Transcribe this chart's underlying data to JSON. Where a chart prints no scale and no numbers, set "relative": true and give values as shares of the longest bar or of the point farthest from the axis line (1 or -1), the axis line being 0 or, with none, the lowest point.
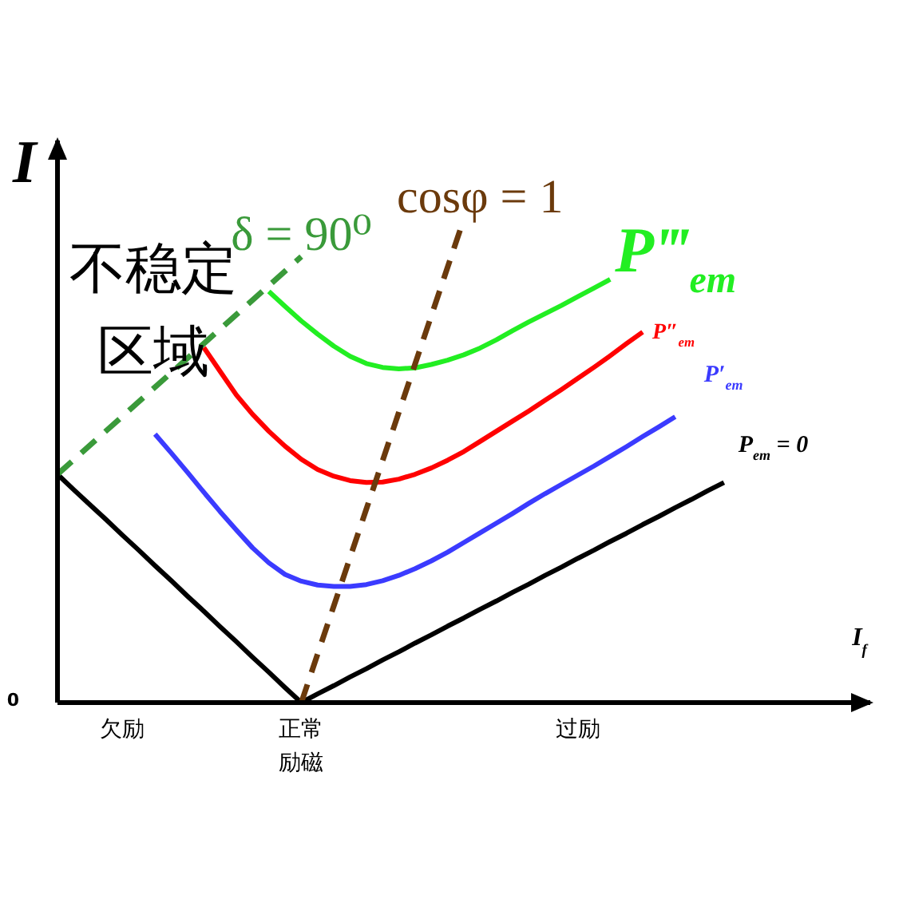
{
  "chart_data": {
    "type": "line",
    "relative": true,
    "xlabel": "I$_{f}$",
    "ylabel": "I",
    "categories": [
      null,
      null,
      null,
      null,
      "欠励",
      null,
      null,
      null,
      null,
      null,
      null,
      null,
      null,
      null,
      null,
      "正常励磁",
      null,
      null,
      null,
      null,
      null,
      null,
      null,
      null,
      null,
      null,
      null,
      null,
      null,
      null,
      null,
      null,
      "过励",
      null,
      null,
      null,
      null,
      null,
      null,
      null,
      null,
      null,
      null,
      null,
      null,
      null,
      null,
      null,
      null,
      null,
      null
    ],
    "series": [
      {
        "name": "P$_{em}$ = 0",
        "color": "#000000",
        "values": [
          0.472,
          0.44,
          0.409,
          0.378,
          0.346,
          0.315,
          0.283,
          0.252,
          0.22,
          0.189,
          0.157,
          0.126,
          0.094,
          0.063,
          0.031,
          0,
          0.018,
          0.035,
          0.053,
          0.07,
          0.088,
          0.105,
          0.123,
          0.14,
          0.158,
          0.175,
          0.193,
          0.21,
          0.228,
          0.245,
          0.263,
          0.28,
          0.298,
          0.315,
          0.333,
          0.35,
          0.368,
          0.385,
          0.403,
          0.42,
          0.438,
          0.455,
          null,
          null,
          null,
          null,
          null,
          null,
          null,
          null,
          null
        ]
      },
      {
        "name": "P′$_{em}$",
        "color": "#3b3bff",
        "values": [
          null,
          null,
          null,
          null,
          null,
          null,
          0.555,
          0.516,
          0.476,
          0.435,
          0.395,
          0.357,
          0.32,
          0.289,
          0.265,
          0.251,
          0.243,
          0.24,
          0.24,
          0.244,
          0.252,
          0.263,
          0.277,
          0.293,
          0.311,
          0.331,
          0.351,
          0.371,
          0.391,
          0.412,
          0.432,
          0.451,
          0.47,
          0.489,
          0.509,
          0.529,
          0.55,
          0.57,
          0.591,
          null,
          null,
          null,
          null,
          null,
          null,
          null,
          null,
          null,
          null,
          null,
          null
        ]
      },
      {
        "name": "P″$_{em}$",
        "color": "#ff0000",
        "values": [
          null,
          null,
          null,
          null,
          null,
          null,
          null,
          null,
          null,
          0.734,
          0.685,
          0.636,
          0.596,
          0.561,
          0.53,
          0.503,
          0.482,
          0.468,
          0.459,
          0.455,
          0.456,
          0.462,
          0.472,
          0.485,
          0.501,
          0.519,
          0.54,
          0.561,
          0.582,
          0.603,
          0.625,
          0.647,
          0.67,
          0.693,
          0.717,
          0.742,
          0.766,
          null,
          null,
          null,
          null,
          null,
          null,
          null,
          null,
          null,
          null,
          null,
          null,
          null,
          null
        ]
      },
      {
        "name": "P‴$_{em}$",
        "color": "#22ee22",
        "values": [
          null,
          null,
          null,
          null,
          null,
          null,
          null,
          null,
          null,
          null,
          null,
          null,
          null,
          0.85,
          0.819,
          0.789,
          0.762,
          0.737,
          0.716,
          0.701,
          0.693,
          0.69,
          0.692,
          0.699,
          0.708,
          0.719,
          0.733,
          0.75,
          0.769,
          0.787,
          0.804,
          0.821,
          0.839,
          0.857,
          0.875,
          null,
          null,
          null,
          null,
          null,
          null,
          null,
          null,
          null,
          null,
          null,
          null,
          null,
          null,
          null,
          null
        ]
      },
      {
        "name": "δ = 90⁰",
        "color": "#3a9a3a",
        "line_style": "dashed",
        "values": [
          0.472,
          0.502,
          0.532,
          0.562,
          0.592,
          0.622,
          0.652,
          0.682,
          0.712,
          0.742,
          0.772,
          0.802,
          0.832,
          0.862,
          0.892,
          0.922,
          null,
          null,
          null,
          null,
          null,
          null,
          null,
          null,
          null,
          null,
          null,
          null,
          null,
          null,
          null,
          null,
          null,
          null,
          null,
          null,
          null,
          null,
          null,
          null,
          null,
          null,
          null,
          null,
          null,
          null,
          null,
          null,
          null,
          null,
          null
        ]
      },
      {
        "name": "cosφ = 1",
        "color": "#6b3a0c",
        "line_style": "dashed",
        "values": [
          null,
          null,
          null,
          null,
          null,
          null,
          null,
          null,
          null,
          null,
          null,
          null,
          null,
          null,
          null,
          0,
          0.1,
          0.2,
          0.3,
          0.4,
          0.5,
          0.6,
          0.7,
          0.8,
          0.9,
          1,
          null,
          null,
          null,
          null,
          null,
          null,
          null,
          null,
          null,
          null,
          null,
          null,
          null,
          null,
          null,
          null,
          null,
          null,
          null,
          null,
          null,
          null,
          null,
          null,
          null
        ]
      }
    ],
    "annotations": [
      "不稳定区域",
      "0"
    ]
  }
}
